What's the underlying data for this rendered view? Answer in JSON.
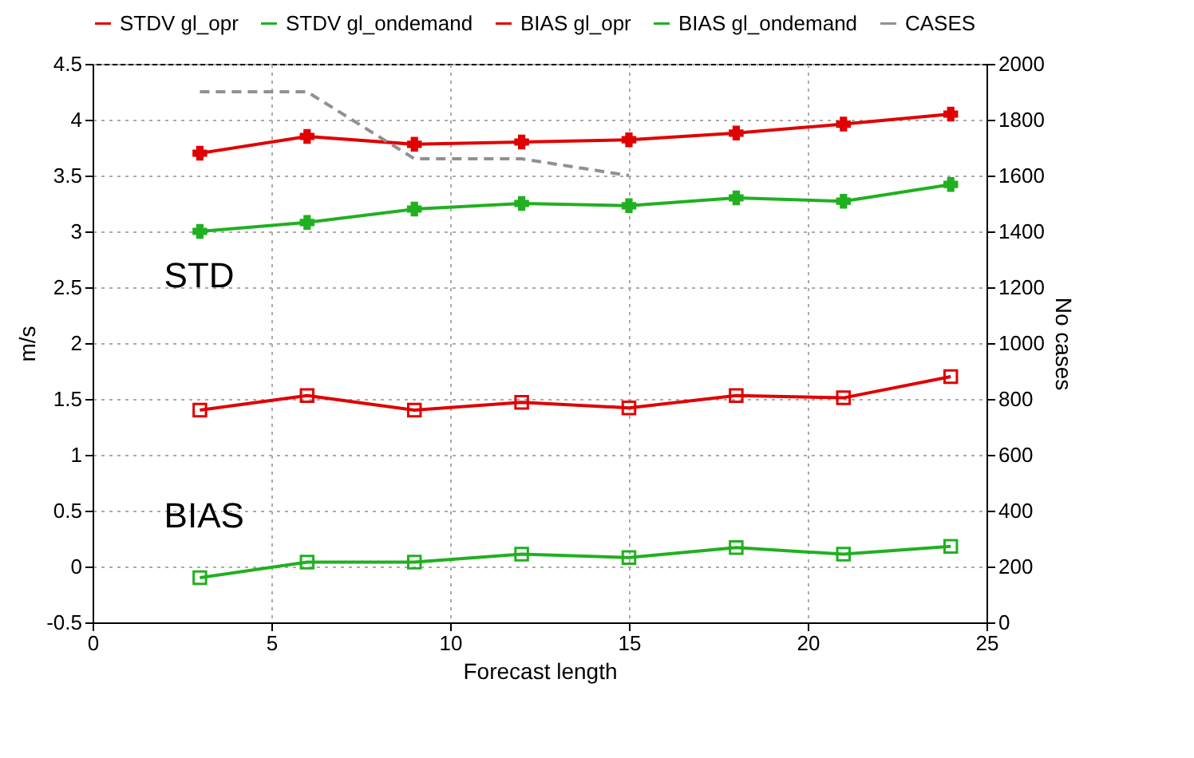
{
  "chart_data": {
    "type": "line",
    "xlabel": "Forecast length",
    "ylabel": "m/s",
    "y2label": "No cases",
    "x": [
      3,
      6,
      9,
      12,
      15,
      18,
      21,
      24
    ],
    "series": [
      {
        "name": "STDV gl_opr",
        "color": "#e00000",
        "marker": "cross",
        "values": [
          3.7,
          3.85,
          3.78,
          3.8,
          3.82,
          3.88,
          3.96,
          4.05
        ]
      },
      {
        "name": "STDV gl_ondemand",
        "color": "#20b020",
        "marker": "cross",
        "values": [
          3.0,
          3.08,
          3.2,
          3.25,
          3.23,
          3.3,
          3.27,
          3.42
        ]
      },
      {
        "name": "BIAS gl_opr",
        "color": "#e00000",
        "marker": "square",
        "values": [
          1.4,
          1.53,
          1.4,
          1.47,
          1.42,
          1.53,
          1.51,
          1.7
        ]
      },
      {
        "name": "BIAS gl_ondemand",
        "color": "#20b020",
        "marker": "square",
        "values": [
          -0.1,
          0.04,
          0.04,
          0.11,
          0.08,
          0.17,
          0.11,
          0.18
        ]
      },
      {
        "name": "CASES",
        "color": "#909090",
        "marker": "none",
        "line_style": "dashed",
        "axis": "y2",
        "values": [
          1900,
          1900,
          1660,
          1660,
          1600,
          null,
          null,
          null
        ]
      }
    ],
    "xlim": [
      0,
      25
    ],
    "xticks": [
      0,
      5,
      10,
      15,
      20,
      25
    ],
    "ylim": [
      -0.5,
      4.5
    ],
    "yticks": [
      -0.5,
      0,
      0.5,
      1,
      1.5,
      2,
      2.5,
      3,
      3.5,
      4,
      4.5
    ],
    "y2lim": [
      0,
      2000
    ],
    "y2ticks": [
      0,
      200,
      400,
      600,
      800,
      1000,
      1200,
      1400,
      1600,
      1800,
      2000
    ],
    "annotations": [
      "STD",
      "BIAS"
    ],
    "grid": true,
    "legend": "top"
  }
}
